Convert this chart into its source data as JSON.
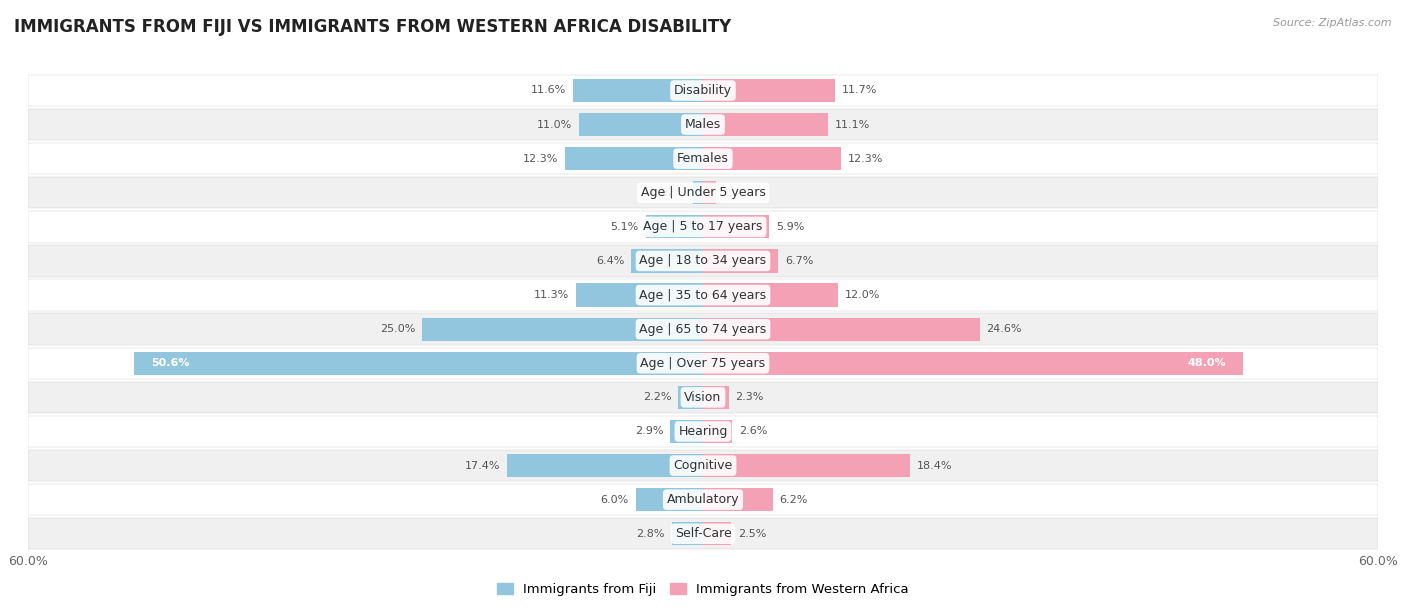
{
  "title": "IMMIGRANTS FROM FIJI VS IMMIGRANTS FROM WESTERN AFRICA DISABILITY",
  "source": "Source: ZipAtlas.com",
  "categories": [
    "Disability",
    "Males",
    "Females",
    "Age | Under 5 years",
    "Age | 5 to 17 years",
    "Age | 18 to 34 years",
    "Age | 35 to 64 years",
    "Age | 65 to 74 years",
    "Age | Over 75 years",
    "Vision",
    "Hearing",
    "Cognitive",
    "Ambulatory",
    "Self-Care"
  ],
  "fiji_values": [
    11.6,
    11.0,
    12.3,
    0.92,
    5.1,
    6.4,
    11.3,
    25.0,
    50.6,
    2.2,
    2.9,
    17.4,
    6.0,
    2.8
  ],
  "west_africa_values": [
    11.7,
    11.1,
    12.3,
    1.2,
    5.9,
    6.7,
    12.0,
    24.6,
    48.0,
    2.3,
    2.6,
    18.4,
    6.2,
    2.5
  ],
  "fiji_color": "#92c5de",
  "west_africa_color": "#f4a0b5",
  "fiji_label": "Immigrants from Fiji",
  "west_africa_label": "Immigrants from Western Africa",
  "xlim": 60.0,
  "row_bg_light": "#ffffff",
  "row_bg_dark": "#f0f0f0",
  "title_fontsize": 12,
  "label_fontsize": 9,
  "value_fontsize": 8,
  "bar_height": 0.68
}
